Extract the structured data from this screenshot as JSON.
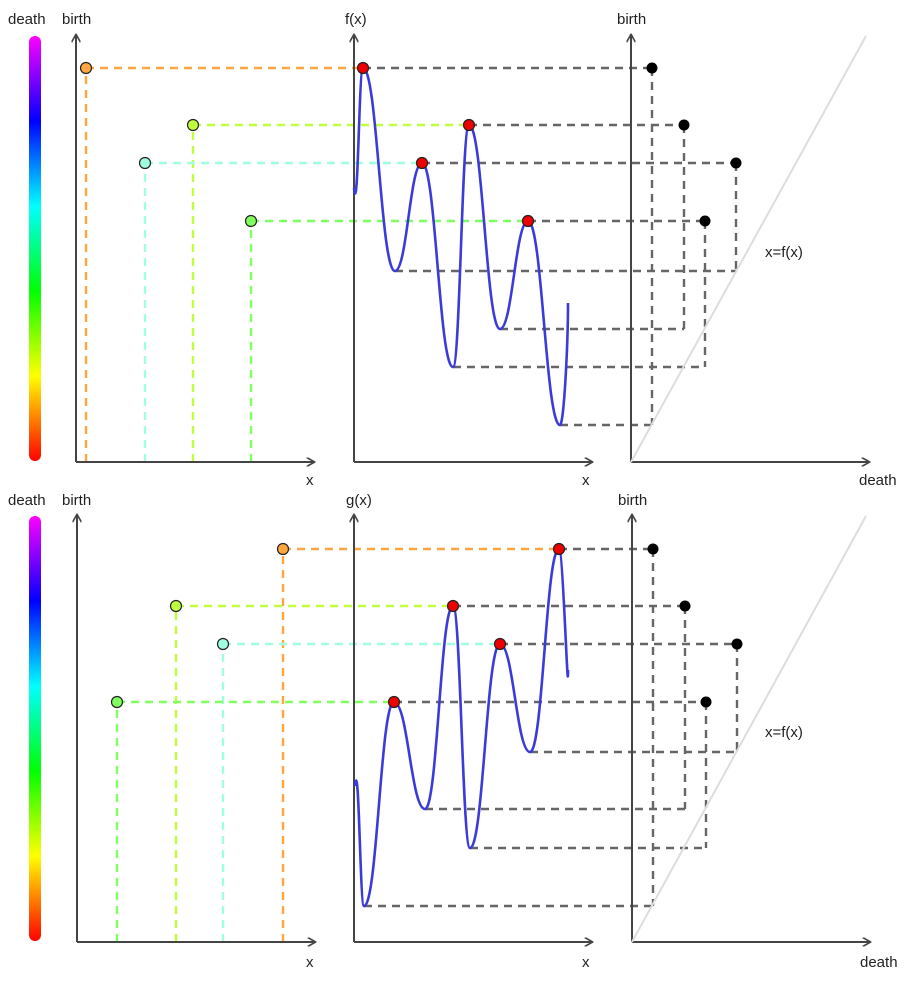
{
  "colorbar": {
    "label": "death",
    "gradient": [
      "#ff00ff",
      "#8000ff",
      "#0000ff",
      "#0080ff",
      "#00ffff",
      "#00ff80",
      "#00ff00",
      "#80ff00",
      "#ffff00",
      "#ff8000",
      "#ff0000"
    ]
  },
  "panels": [
    {
      "id": "top",
      "left_axis_y": "birth",
      "left_axis_x": "x",
      "mid_axis_y": "f(x)",
      "mid_axis_x": "x",
      "right_axis_y": "birth",
      "right_axis_x": "death",
      "diagonal_label": "x=f(x)"
    },
    {
      "id": "bottom",
      "left_axis_y": "birth",
      "left_axis_x": "x",
      "mid_axis_y": "g(x)",
      "mid_axis_x": "x",
      "right_axis_y": "birth",
      "right_axis_x": "death",
      "diagonal_label": "x=f(x)"
    }
  ],
  "colors": {
    "axis": "#444444",
    "curve": "#3b3bd9",
    "maximum": "#ee0000",
    "diagram_point": "#000000",
    "guide": "#666666",
    "diagonal": "#dddddd",
    "pair_colors": [
      "#ffa640",
      "#c0ff40",
      "#a0ffe0",
      "#80ff60"
    ]
  }
}
